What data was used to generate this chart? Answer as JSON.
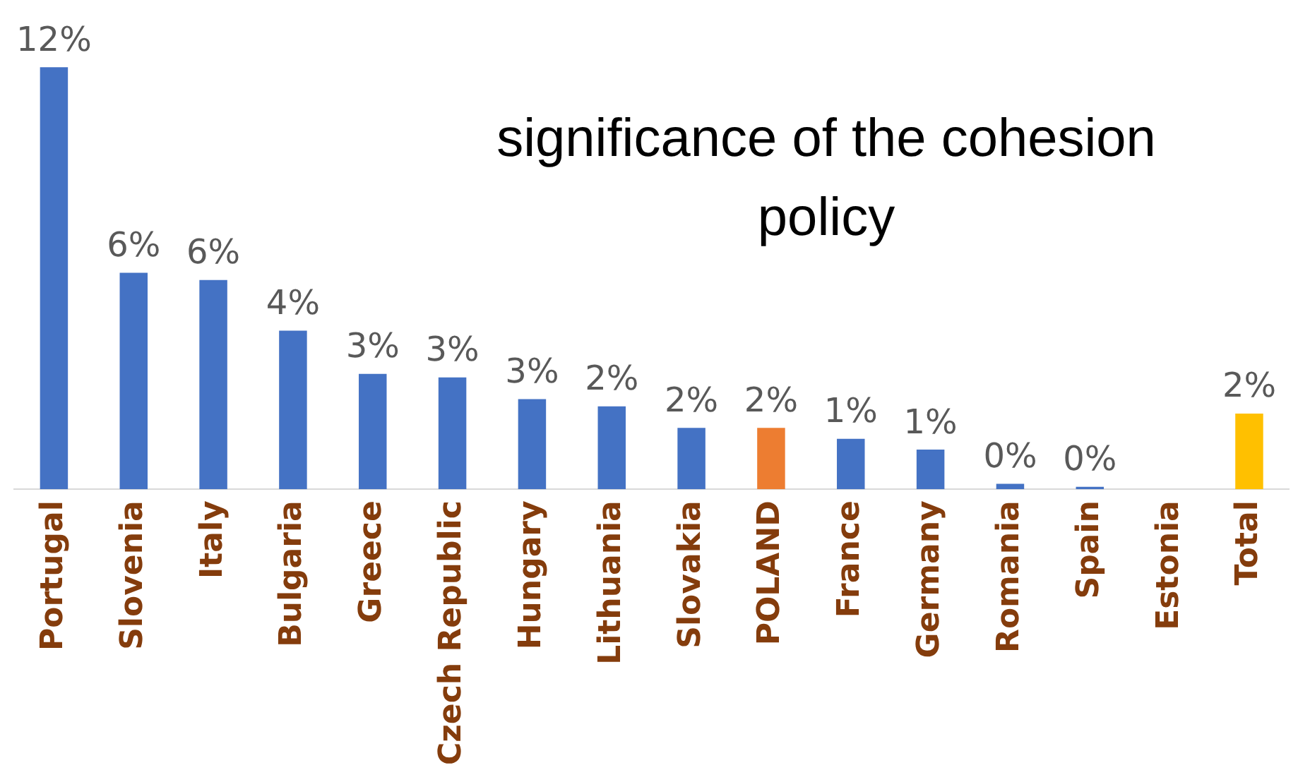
{
  "chart_data": {
    "type": "bar",
    "title": "significance of the cohesion policy",
    "categories": [
      "Portugal",
      "Slovenia",
      "Italy",
      "Bulgaria",
      "Greece",
      "Czech Republic",
      "Hungary",
      "Lithuania",
      "Slovakia",
      "POLAND",
      "France",
      "Germany",
      "Romania",
      "Spain",
      "Estonia",
      "Total"
    ],
    "values": [
      11.7,
      6.0,
      5.8,
      4.4,
      3.2,
      3.1,
      2.5,
      2.3,
      1.7,
      1.7,
      1.4,
      1.1,
      0.15,
      0.07,
      0,
      2.1
    ],
    "value_labels": [
      "12%",
      "6%",
      "6%",
      "4%",
      "3%",
      "3%",
      "3%",
      "2%",
      "2%",
      "2%",
      "1%",
      "1%",
      "0%",
      "0%",
      null,
      "2%"
    ],
    "colors": [
      "#4472c4",
      "#4472c4",
      "#4472c4",
      "#4472c4",
      "#4472c4",
      "#4472c4",
      "#4472c4",
      "#4472c4",
      "#4472c4",
      "#ed7d31",
      "#4472c4",
      "#4472c4",
      "#4472c4",
      "#4472c4",
      "#4472c4",
      "#ffc000"
    ],
    "tick_labels": "x",
    "grid": false,
    "legend": false
  }
}
